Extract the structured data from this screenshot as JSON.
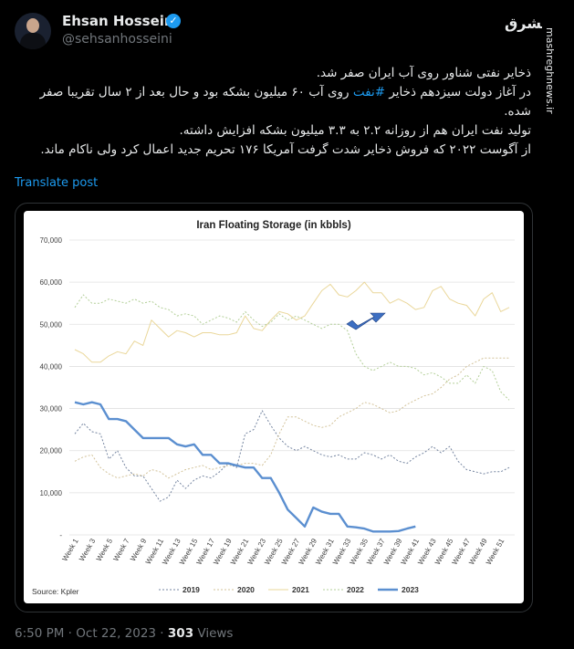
{
  "author": {
    "name": "Ehsan Hosseini",
    "handle": "@sehsanhosseini",
    "verified_mark": "✓"
  },
  "site": {
    "logo_text": "مشرق",
    "watermark": "mashreghnews.ir"
  },
  "tweet": {
    "line1": "ذخایر نفتی شناور روی آب ایران صفر شد.",
    "line2_before": "در آغاز دولت سیزدهم ذخایر ",
    "line2_hashtag": "#نفت",
    "line2_after": " روی آب ۶۰ میلیون بشکه بود و حال بعد از ۲ سال تقریبا صفر شده.",
    "line3": "تولید نفت ایران هم از روزانه ۲.۲ به ۳.۳ میلیون بشکه افزایش داشته.",
    "line4": "از آگوست ۲۰۲۲ که فروش ذخایر شدت گرفت آمریکا ۱۷۶ تحریم جدید اعمال کرد ولی ناکام ماند.",
    "translate": "Translate post"
  },
  "meta": {
    "time": "6:50 PM · Oct 22, 2023 · ",
    "views_count": "303",
    "views_label": " Views"
  },
  "chart_data": {
    "type": "line",
    "title": "Iran Floating Storage (in kbbls)",
    "source": "Source: Kpler",
    "ylim": [
      0,
      70000
    ],
    "yticks": [
      "70,000",
      "60,000",
      "50,000",
      "40,000",
      "30,000",
      "20,000",
      "10,000",
      "-"
    ],
    "xticks": [
      "Week 1",
      "Week 3",
      "Week 5",
      "Week 7",
      "Week 9",
      "Week 11",
      "Week 13",
      "Week 15",
      "Week 17",
      "Week 19",
      "Week 21",
      "Week 23",
      "Week 25",
      "Week 27",
      "Week 29",
      "Week 31",
      "Week 33",
      "Week 35",
      "Week 37",
      "Week 39",
      "Week 41",
      "Week 43",
      "Week 45",
      "Week 47",
      "Week 49",
      "Week 51"
    ],
    "grid": true,
    "legend_position": "bottom",
    "series": [
      {
        "name": "2019",
        "color": "#7585a0",
        "dash": "2,2",
        "width": 1,
        "values": [
          24000,
          26500,
          24500,
          24000,
          18000,
          20000,
          16000,
          14000,
          14000,
          11000,
          8000,
          9000,
          13000,
          11000,
          13000,
          14000,
          13500,
          15000,
          17000,
          16000,
          24000,
          25000,
          29500,
          26000,
          23000,
          21000,
          20000,
          21000,
          20000,
          19000,
          18500,
          19000,
          18000,
          18000,
          19500,
          19000,
          18000,
          19000,
          17500,
          17000,
          18500,
          19500,
          21000,
          19500,
          21000,
          17500,
          15500,
          15000,
          14500,
          15000,
          15000,
          16000
        ]
      },
      {
        "name": "2020",
        "color": "#d3c39a",
        "dash": "2,2",
        "width": 1,
        "values": [
          17500,
          18500,
          19000,
          16000,
          14500,
          13500,
          14000,
          14500,
          14000,
          15500,
          15000,
          13500,
          14500,
          15500,
          16000,
          16500,
          15500,
          16000,
          16500,
          16500,
          17000,
          17000,
          16500,
          19000,
          24000,
          28000,
          28000,
          27000,
          26000,
          25500,
          26000,
          28000,
          29000,
          30000,
          31500,
          31000,
          30000,
          29000,
          29500,
          31000,
          32000,
          33000,
          33500,
          35000,
          37000,
          38000,
          40000,
          41000,
          42000,
          42000,
          42000,
          42000
        ]
      },
      {
        "name": "2021",
        "color": "#ead79a",
        "dash": "",
        "width": 1,
        "values": [
          44000,
          43000,
          41000,
          41000,
          42500,
          43500,
          43000,
          46000,
          45000,
          51000,
          49000,
          47000,
          48500,
          48000,
          47000,
          48000,
          48000,
          47500,
          47500,
          48000,
          52000,
          49000,
          48500,
          51000,
          53000,
          52500,
          51000,
          52000,
          55000,
          58000,
          59500,
          57000,
          56500,
          58000,
          60000,
          57500,
          57500,
          55000,
          56000,
          55000,
          53500,
          54000,
          58000,
          59000,
          56000,
          55000,
          54500,
          52000,
          56000,
          57500,
          53000,
          54000
        ]
      },
      {
        "name": "2022",
        "color": "#b3cf98",
        "dash": "2,2",
        "width": 1,
        "values": [
          54000,
          57000,
          55000,
          55000,
          56000,
          55500,
          55000,
          56000,
          55000,
          55500,
          54000,
          53500,
          52000,
          52500,
          52000,
          50000,
          51000,
          52000,
          51500,
          50500,
          53000,
          51000,
          49500,
          50500,
          52500,
          51000,
          52000,
          51000,
          50000,
          49000,
          50000,
          50000,
          48500,
          43000,
          40000,
          39000,
          40000,
          41000,
          40000,
          40000,
          39500,
          38000,
          38500,
          37500,
          36000,
          36000,
          38000,
          36000,
          40000,
          39000,
          34000,
          32000
        ]
      },
      {
        "name": "2023",
        "color": "#5b8fd0",
        "dash": "",
        "width": 2.4,
        "values": [
          31500,
          31000,
          31500,
          31000,
          27500,
          27500,
          27000,
          25000,
          23000,
          23000,
          23000,
          23000,
          21500,
          21000,
          21500,
          19000,
          19000,
          17000,
          17000,
          16500,
          16000,
          16000,
          13500,
          13500,
          10000,
          6000,
          4000,
          2000,
          6500,
          5500,
          5000,
          5000,
          2000,
          1800,
          1500,
          800,
          800,
          800,
          900,
          1500,
          2000
        ]
      }
    ]
  }
}
